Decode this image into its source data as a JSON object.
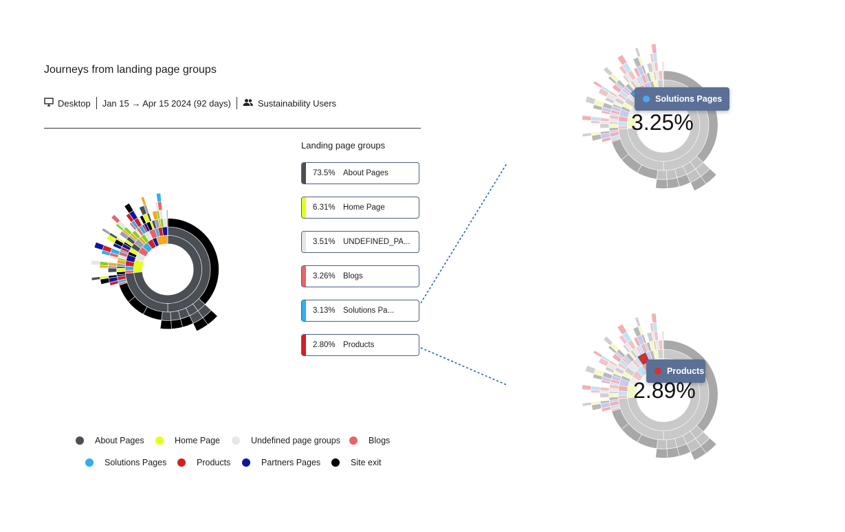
{
  "header": {
    "title": "Journeys from landing page groups",
    "device": "Desktop",
    "date_range": "Jan 15 → Apr 15 2024 (92 days)",
    "segment": "Sustainability Users"
  },
  "landing_groups": {
    "title": "Landing page groups",
    "items": [
      {
        "pct": "73.5%",
        "label": "About Pages",
        "color": "#4a4e55"
      },
      {
        "pct": "6.31%",
        "label": "Home Page",
        "color": "#e4ff1a"
      },
      {
        "pct": "3.51%",
        "label": "UNDEFINED_PA...",
        "color": "#e6e6e6"
      },
      {
        "pct": "3.26%",
        "label": "Blogs",
        "color": "#e8636b"
      },
      {
        "pct": "3.13%",
        "label": "Solutions Pa...",
        "color": "#2fb0ec"
      },
      {
        "pct": "2.80%",
        "label": "Products",
        "color": "#d31f26"
      }
    ]
  },
  "legend": [
    {
      "label": "About Pages",
      "color": "#4a4e55"
    },
    {
      "label": "Home Page",
      "color": "#e4ff1a"
    },
    {
      "label": "Undefined page groups",
      "color": "#e6e6e6"
    },
    {
      "label": "Blogs",
      "color": "#e8636b"
    },
    {
      "label": "Solutions Pages",
      "color": "#2fb0ec"
    },
    {
      "label": "Products",
      "color": "#d31f26"
    },
    {
      "label": "Partners Pages",
      "color": "#10169a"
    },
    {
      "label": "Site exit",
      "color": "#000000"
    }
  ],
  "zoom_views": [
    {
      "badge": "Solutions Pages",
      "badge_color": "#4aa8f0",
      "value": "3.25%"
    },
    {
      "badge": "Products",
      "badge_color": "#d9302a",
      "value": "2.89%"
    }
  ],
  "icons": {
    "device": "monitor-icon",
    "segment": "users-icon"
  }
}
